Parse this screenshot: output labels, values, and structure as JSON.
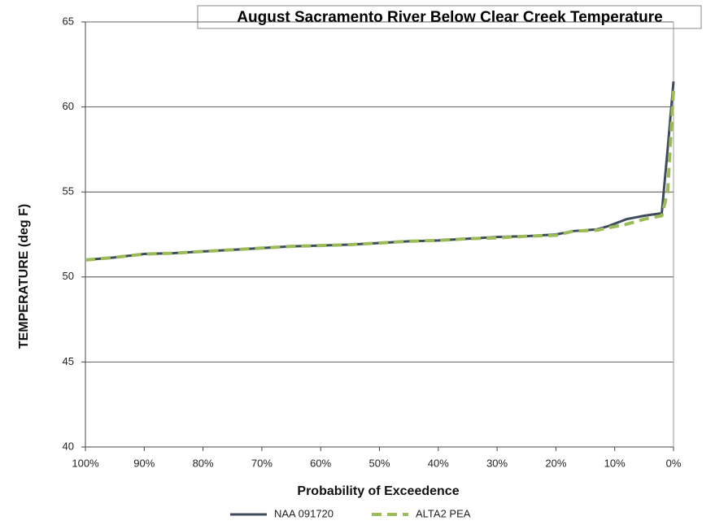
{
  "chart_data": {
    "type": "line",
    "title": "August Sacramento River Below Clear Creek Temperature",
    "x_label": "Probability of Exceedence",
    "y_label": "TEMPERATURE (deg F)",
    "xlim": [
      100,
      0
    ],
    "xticks": [
      {
        "value": 100,
        "label": "100%"
      },
      {
        "value": 90,
        "label": "90%"
      },
      {
        "value": 80,
        "label": "80%"
      },
      {
        "value": 70,
        "label": "70%"
      },
      {
        "value": 60,
        "label": "60%"
      },
      {
        "value": 50,
        "label": "50%"
      },
      {
        "value": 40,
        "label": "40%"
      },
      {
        "value": 30,
        "label": "30%"
      },
      {
        "value": 20,
        "label": "20%"
      },
      {
        "value": 10,
        "label": "10%"
      },
      {
        "value": 0,
        "label": "0%"
      }
    ],
    "ylim": [
      40,
      65
    ],
    "yticks": [
      40,
      45,
      50,
      55,
      60,
      65
    ],
    "grid": true,
    "x": [
      100,
      95,
      90,
      85,
      80,
      75,
      70,
      65,
      60,
      55,
      50,
      45,
      40,
      35,
      30,
      25,
      20,
      17,
      13,
      11,
      8,
      5,
      2,
      1,
      0
    ],
    "series": [
      {
        "name": "NAA 091720",
        "color": "#3d4b5c",
        "dashed": false,
        "values": [
          51.0,
          51.15,
          51.35,
          51.4,
          51.5,
          51.6,
          51.7,
          51.8,
          51.85,
          51.9,
          52.0,
          52.1,
          52.15,
          52.25,
          52.35,
          52.4,
          52.5,
          52.7,
          52.8,
          53.0,
          53.4,
          53.6,
          53.75,
          57.5,
          61.5
        ]
      },
      {
        "name": "ALTA2 PEA",
        "color": "#9bbb59",
        "dashed": true,
        "values": [
          51.0,
          51.15,
          51.35,
          51.4,
          51.5,
          51.6,
          51.7,
          51.8,
          51.85,
          51.9,
          52.0,
          52.1,
          52.15,
          52.25,
          52.3,
          52.4,
          52.45,
          52.7,
          52.75,
          52.9,
          53.1,
          53.4,
          53.6,
          55.0,
          61.0
        ]
      }
    ]
  }
}
